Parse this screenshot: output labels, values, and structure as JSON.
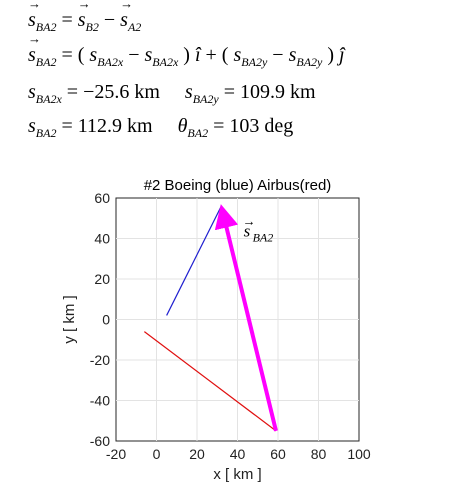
{
  "equations": {
    "line1": {
      "lhs_sym": "s",
      "lhs_sub": "BA2",
      "t1_sym": "s",
      "t1_sub": "B2",
      "t2_sym": "s",
      "t2_sub": "A2"
    },
    "line2": {
      "lhs_sym": "s",
      "lhs_sub": "BA2",
      "a_sym": "s",
      "a_sub": "BA2x",
      "b_sym": "s",
      "b_sub": "BA2x",
      "i_hat": "î",
      "c_sym": "s",
      "c_sub": "BA2y",
      "d_sym": "s",
      "d_sub": "BA2y",
      "j_hat": "ĵ"
    },
    "line3": {
      "sx_sym": "s",
      "sx_sub": "BA2x",
      "sx_value": "−25.6  km",
      "sy_sym": "s",
      "sy_sub": "BA2y",
      "sy_value": "109.9  km"
    },
    "line4": {
      "s_sym": "s",
      "s_sub": "BA2",
      "s_value": "112.9   km",
      "theta_sym": "θ",
      "theta_sub": "BA2",
      "theta_value": "103 deg"
    }
  },
  "chart_data": {
    "type": "line",
    "title": "#2   Boeing (blue)   Airbus(red)",
    "xlabel": "x  [ km ]",
    "ylabel": "y  [ km ]",
    "xlim": [
      -20,
      100
    ],
    "ylim": [
      -60,
      60
    ],
    "xticks": [
      -20,
      0,
      20,
      40,
      60,
      80,
      100
    ],
    "yticks": [
      60,
      40,
      20,
      0,
      -20,
      -40,
      -60
    ],
    "grid": true,
    "series": [
      {
        "color": "#1f1fd0",
        "x": [
          5,
          32
        ],
        "y": [
          2,
          56
        ]
      },
      {
        "color": "#e01010",
        "x": [
          -6,
          59
        ],
        "y": [
          -6,
          -55
        ]
      }
    ],
    "vector": {
      "color": "#ff00ff",
      "from": [
        59,
        -55
      ],
      "to": [
        32,
        56
      ]
    },
    "annotation": {
      "sym": "s",
      "sub": "BA2",
      "x": 43,
      "y": 41
    }
  }
}
